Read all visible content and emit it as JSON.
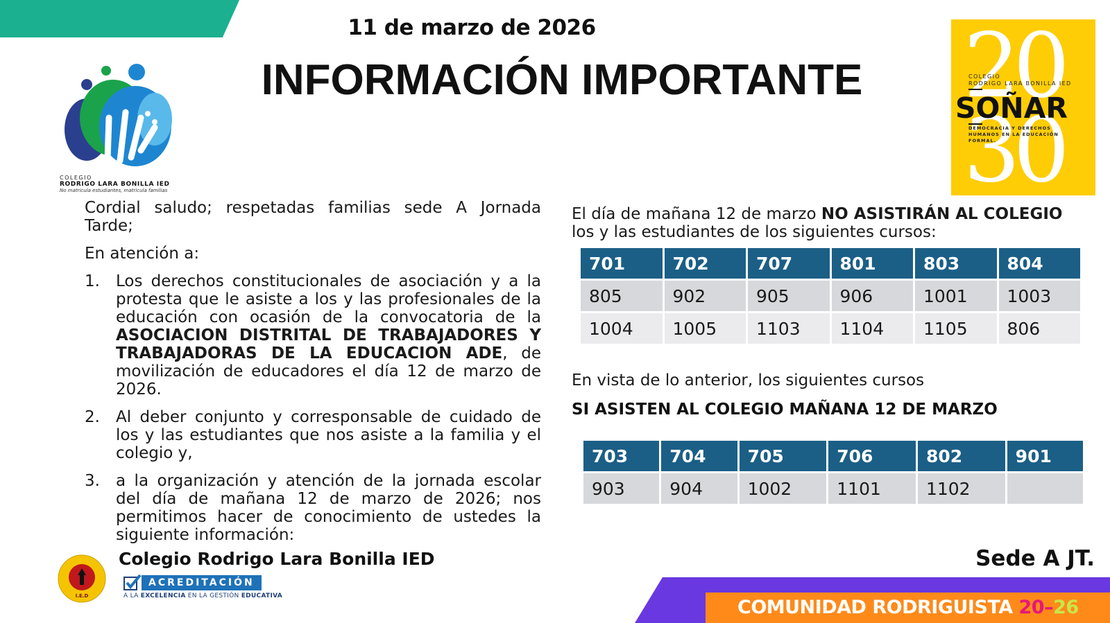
{
  "header": {
    "date": "11 de marzo de 2026",
    "title": "INFORMACIÓN IMPORTANTE"
  },
  "school_logo": {
    "line1": "COLEGIO",
    "line2": "RODRIGO LARA BONILLA IED",
    "tagline": "No matricula estudiantes, matricula familias"
  },
  "sonar_badge": {
    "year_top": "20",
    "year_bottom": "30",
    "colegio": "COLEGIO",
    "school": "RODRIGO LARA BONILLA IED",
    "word": "SOÑAR",
    "desc": "DEMOCRACIA Y DERECHOS HUMANOS EN LA EDUCACIÓN FORMAL.",
    "bg_color": "#ffcd05"
  },
  "letter": {
    "greeting": "Cordial saludo;  respetadas familias sede A Jornada Tarde;",
    "intro": "En atención a:",
    "items": [
      {
        "n": "1.",
        "a": "Los derechos constitucionales de asociación y a la protesta que le asiste a los y las profesionales de la educación con ocasión de la convocatoria de la ",
        "b": "ASOCIACION DISTRITAL DE TRABAJADORES Y TRABAJADORAS DE LA EDUCACION ADE",
        "c": ", de movilización de educadores el día 12 de marzo de 2026."
      },
      {
        "n": "2.",
        "a": " Al deber conjunto y corresponsable de cuidado de los y las estudiantes que nos asiste a la familia y el colegio  y,"
      },
      {
        "n": "3.",
        "a": "a la organización y atención de la jornada escolar del día de mañana 12 de marzo de 2026;  nos permitimos hacer de conocimiento de ustedes  la siguiente información:"
      }
    ]
  },
  "not_attending": {
    "intro_a": "El día de mañana  12 de  marzo ",
    "intro_b": "NO ASISTIRÁN AL COLEGIO",
    "intro_c": "los y las estudiantes de los siguientes cursos:",
    "header": [
      "701",
      "702",
      "707",
      "801",
      "803",
      "804"
    ],
    "rows": [
      [
        "805",
        "902",
        "905",
        "906",
        "1001",
        "1003"
      ],
      [
        "1004",
        "1005",
        "1103",
        "1104",
        "1105",
        "806"
      ]
    ]
  },
  "attending": {
    "line1": "En vista de lo anterior,  los siguientes cursos",
    "line2": "SI ASISTEN AL COLEGIO MAÑANA 12 DE MARZO",
    "header": [
      "703",
      "704",
      "705",
      "706",
      "802",
      "901"
    ],
    "rows": [
      [
        "903",
        "904",
        "1002",
        "1101",
        "1102",
        ""
      ]
    ]
  },
  "footer": {
    "school_name": "Colegio Rodrigo Lara Bonilla IED",
    "acred_label": "ACREDITACIÓN",
    "acred_sub_a": "A LA ",
    "acred_sub_b": "EXCELENCIA",
    "acred_sub_c": " EN LA GESTIÓN ",
    "acred_sub_d": "EDUCATIVA",
    "sede": "Sede A JT.",
    "seal_text": "I.E.D",
    "banner_text": "COMUNIDAD RODRIGUISTA ",
    "banner_y1": "20",
    "banner_dash": "–",
    "banner_y2": "26"
  },
  "colors": {
    "accent_green": "#1bb08f",
    "table_header": "#1b5f86",
    "banner_orange": "#ff8a1a",
    "banner_purple": "#6a38e0"
  }
}
